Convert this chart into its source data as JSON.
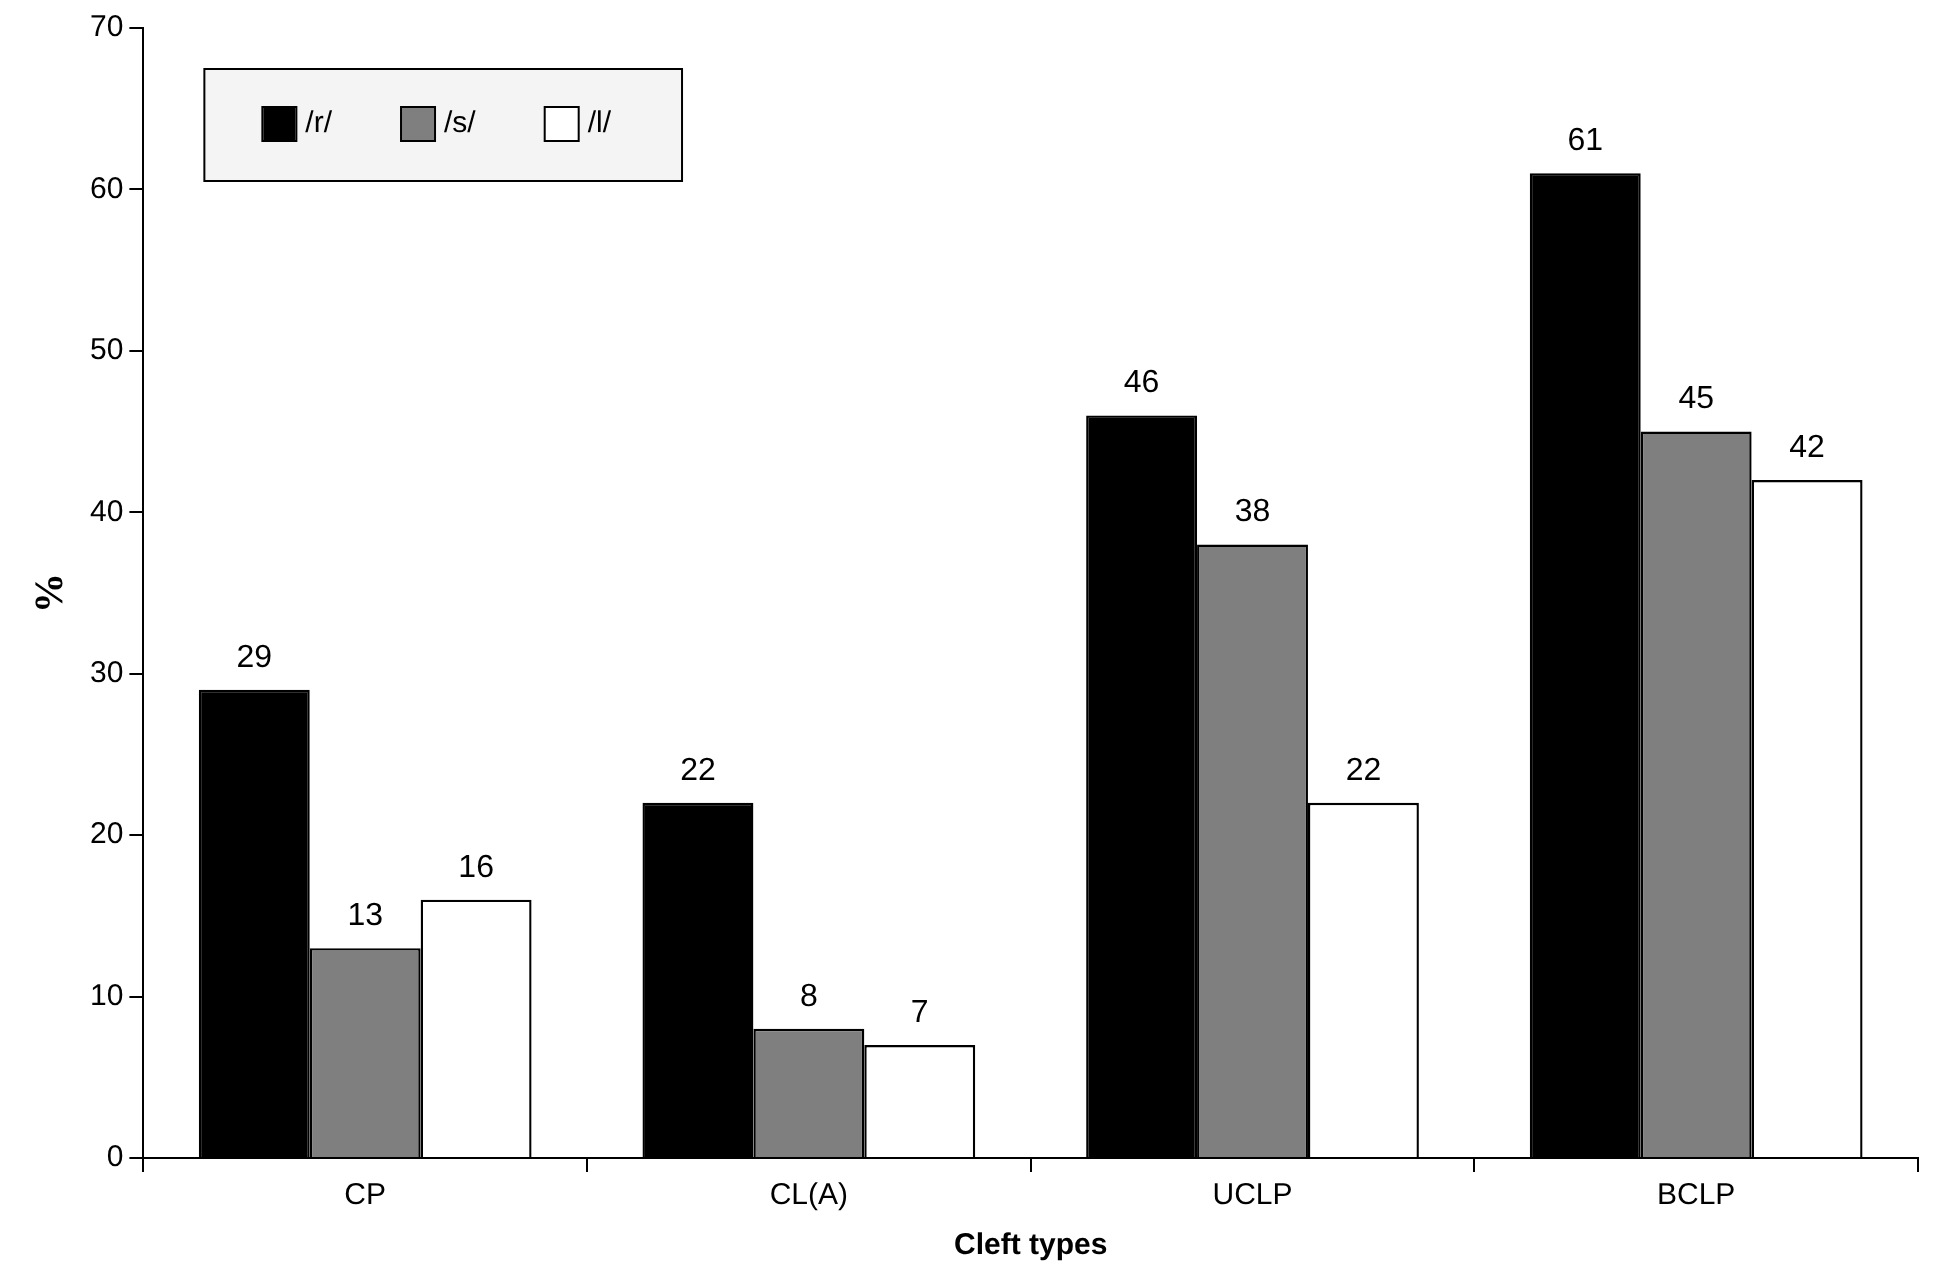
{
  "chart_data": {
    "type": "bar",
    "xlabel": "Cleft types",
    "ylabel": "%",
    "categories": [
      "CP",
      "CL(A)",
      "UCLP",
      "BCLP"
    ],
    "series": [
      {
        "name": "/r/",
        "color": "#000000",
        "values": [
          29,
          22,
          46,
          61
        ]
      },
      {
        "name": "/s/",
        "color": "#7f7f7f",
        "values": [
          13,
          8,
          38,
          45
        ]
      },
      {
        "name": "/l/",
        "color": "#ffffff",
        "values": [
          16,
          7,
          22,
          42
        ]
      }
    ],
    "ylim": [
      0,
      70
    ],
    "yticks": [
      0,
      10,
      20,
      30,
      40,
      50,
      60,
      70
    ],
    "grid": false,
    "legend": "top left",
    "data_labels": true
  }
}
